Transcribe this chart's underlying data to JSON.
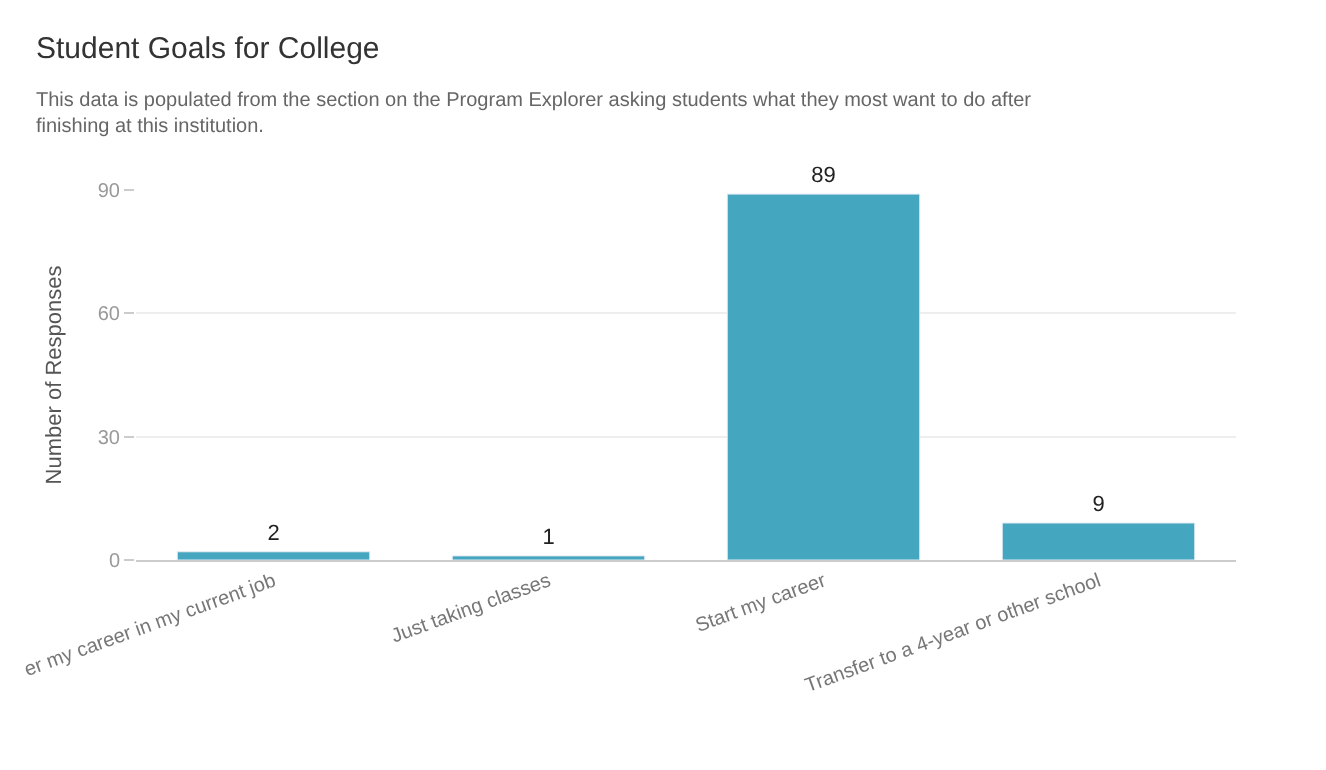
{
  "chart_data": {
    "type": "bar",
    "title": "Student Goals for College",
    "subtitle": "This data is populated from the section on the Program Explorer asking students what they most want to do after finishing at this institution.",
    "ylabel": "Number of Responses",
    "categories": [
      "er my career in my current job",
      "Just taking classes",
      "Start my career",
      "Transfer to a 4-year or other school"
    ],
    "values": [
      2,
      1,
      89,
      9
    ],
    "color": "#45a6bf",
    "ylim": [
      0,
      90
    ],
    "yticks": [
      0,
      30,
      60,
      90
    ],
    "grid": "y",
    "data_labels": true,
    "legend": false
  }
}
